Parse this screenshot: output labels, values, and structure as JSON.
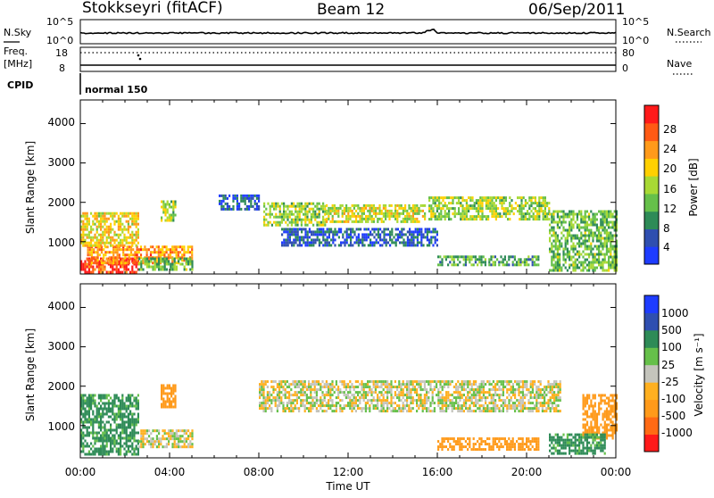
{
  "header": {
    "station": "Stokkseyri (fitACF)",
    "beam": "Beam 12",
    "date": "06/Sep/2011"
  },
  "top_panel": {
    "left_label": "N.Sky",
    "right_label": "N.Search",
    "left_ticks": [
      "10^5",
      "10^0"
    ],
    "right_ticks": [
      "10^5",
      "10^0"
    ]
  },
  "freq_panel": {
    "left_label_1": "Freq.",
    "left_label_2": "[MHz]",
    "right_label": "Nave",
    "left_ticks": [
      "18",
      "8"
    ],
    "right_ticks": [
      "80",
      "0"
    ]
  },
  "cpid": {
    "label": "CPID",
    "mode": "normal 150"
  },
  "axes": {
    "ylabel": "Slant Range [km]",
    "xlabel": "Time UT",
    "y_ticks": [
      "4000",
      "3000",
      "2000",
      "1000"
    ],
    "x_ticks": [
      "00:00",
      "04:00",
      "08:00",
      "12:00",
      "16:00",
      "20:00",
      "00:00"
    ]
  },
  "colors": {
    "power": [
      "#1e3cff",
      "#2f4fb0",
      "#2e8b57",
      "#66c04a",
      "#a8d934",
      "#ffd000",
      "#ff9a1a",
      "#ff5a14",
      "#ff1a1a"
    ],
    "velocity": [
      "#ff1a1a",
      "#ff6a14",
      "#ff9a1a",
      "#ffb020",
      "#c4c4bc",
      "#66c04a",
      "#2e8b57",
      "#2f4fb0",
      "#1e3cff"
    ]
  },
  "colorbars": {
    "power": {
      "label": "Power [dB]",
      "ticks": [
        "28",
        "24",
        "20",
        "16",
        "12",
        "8",
        "4"
      ]
    },
    "velocity": {
      "label": "Velocity  [m s⁻¹]",
      "ticks": [
        "1000",
        "500",
        "100",
        "25",
        "-25",
        "-100",
        "-500",
        "-1000"
      ]
    }
  },
  "chart_data": [
    {
      "type": "heatmap",
      "title": "Power",
      "xlabel": "Time UT",
      "ylabel": "Slant Range [km]",
      "x_range_hours": [
        0,
        24
      ],
      "ylim": [
        180,
        4600
      ],
      "colorbar": {
        "label": "Power [dB]",
        "range": [
          0,
          30
        ]
      },
      "regions": [
        {
          "t": [
            0.0,
            2.6
          ],
          "r": [
            250,
            600
          ],
          "value": 27
        },
        {
          "t": [
            0.3,
            5.0
          ],
          "r": [
            450,
            900
          ],
          "value": 22
        },
        {
          "t": [
            0.0,
            2.6
          ],
          "r": [
            900,
            1750
          ],
          "value": 18
        },
        {
          "t": [
            2.6,
            5.0
          ],
          "r": [
            300,
            600
          ],
          "value": 12
        },
        {
          "t": [
            3.6,
            4.3
          ],
          "r": [
            1550,
            2050
          ],
          "value": 14
        },
        {
          "t": [
            6.2,
            8.0
          ],
          "r": [
            1800,
            2200
          ],
          "value": 5
        },
        {
          "t": [
            8.2,
            11.0
          ],
          "r": [
            1450,
            2000
          ],
          "value": 14
        },
        {
          "t": [
            11.0,
            15.4
          ],
          "r": [
            1500,
            1950
          ],
          "value": 16
        },
        {
          "t": [
            15.6,
            21.0
          ],
          "r": [
            1550,
            2150
          ],
          "value": 14
        },
        {
          "t": [
            21.0,
            24.0
          ],
          "r": [
            300,
            1800
          ],
          "value": 12
        },
        {
          "t": [
            16.0,
            20.5
          ],
          "r": [
            400,
            650
          ],
          "value": 10
        },
        {
          "t": [
            9.0,
            16.0
          ],
          "r": [
            900,
            1350
          ],
          "value": 5
        }
      ]
    },
    {
      "type": "heatmap",
      "title": "Velocity",
      "xlabel": "Time UT",
      "ylabel": "Slant Range [km]",
      "x_range_hours": [
        0,
        24
      ],
      "ylim": [
        180,
        4600
      ],
      "colorbar": {
        "label": "Velocity [m s-1]",
        "ticks": [
          1000,
          500,
          100,
          25,
          -25,
          -100,
          -500,
          -1000
        ]
      },
      "regions": [
        {
          "t": [
            0.0,
            2.6
          ],
          "r": [
            300,
            1800
          ],
          "value": 150
        },
        {
          "t": [
            2.6,
            5.0
          ],
          "r": [
            450,
            900
          ],
          "value": 0
        },
        {
          "t": [
            3.6,
            4.3
          ],
          "r": [
            1500,
            2050
          ],
          "value": -200
        },
        {
          "t": [
            8.0,
            21.5
          ],
          "r": [
            1400,
            2150
          ],
          "value": 0
        },
        {
          "t": [
            16.0,
            20.5
          ],
          "r": [
            400,
            700
          ],
          "value": -300
        },
        {
          "t": [
            22.5,
            24.0
          ],
          "r": [
            700,
            1800
          ],
          "value": -400
        },
        {
          "t": [
            21.0,
            23.5
          ],
          "r": [
            300,
            800
          ],
          "value": 150
        }
      ]
    }
  ]
}
